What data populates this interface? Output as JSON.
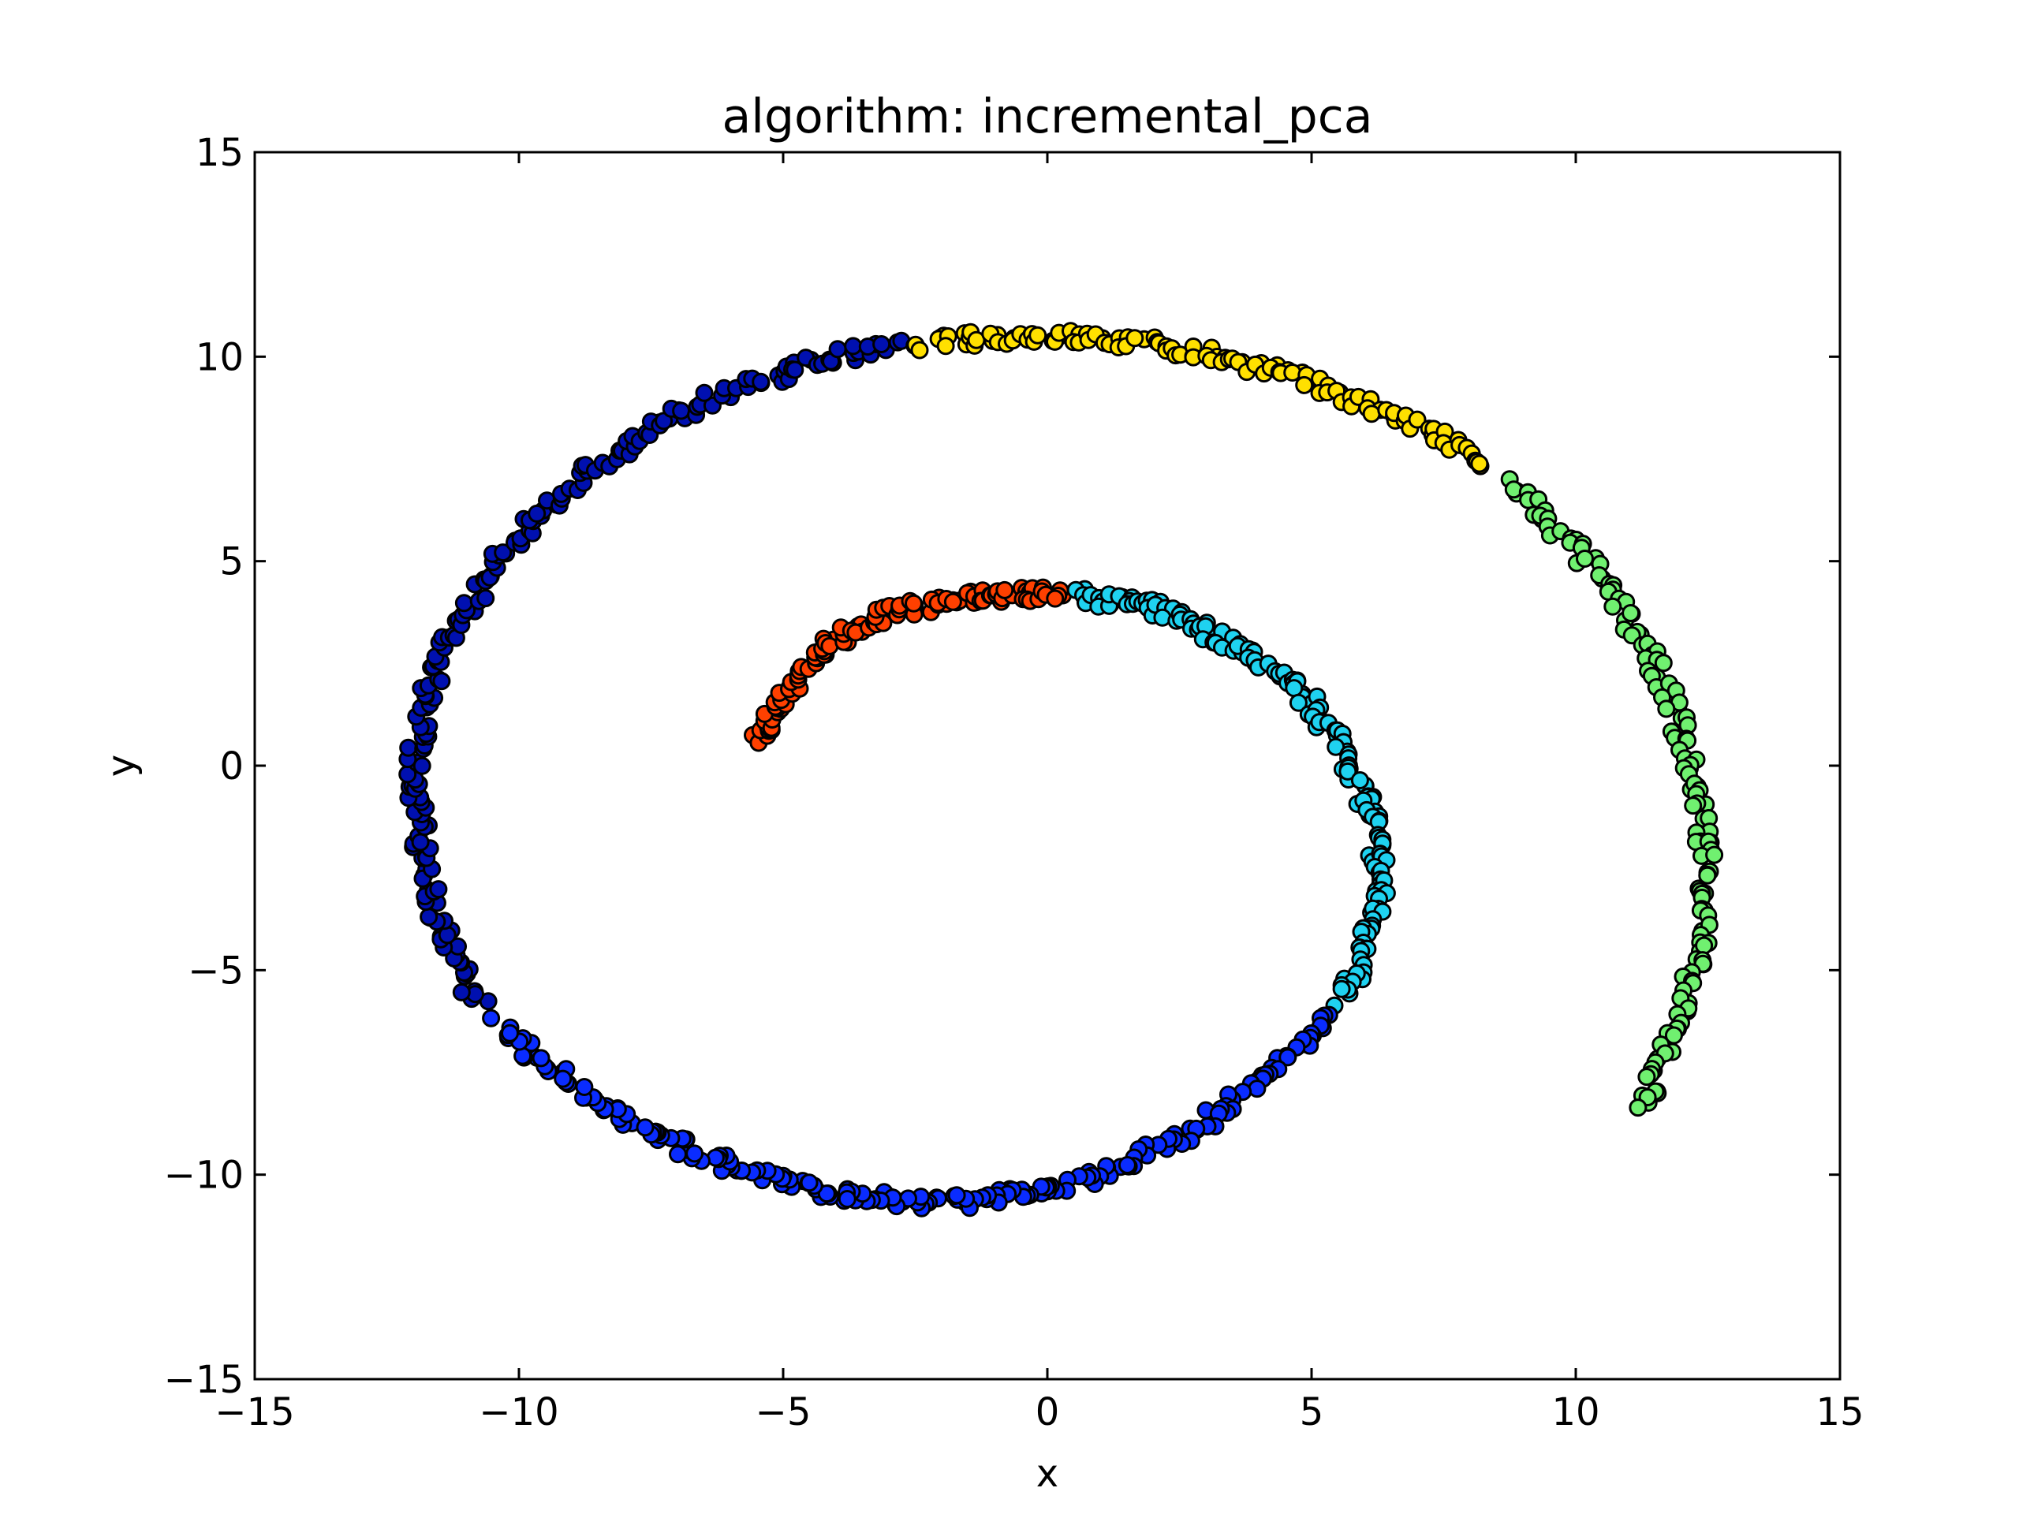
{
  "chart_data": {
    "type": "scatter",
    "title": "algorithm: incremental_pca",
    "xlabel": "x",
    "ylabel": "y",
    "xlim": [
      -15,
      15
    ],
    "ylim": [
      -15,
      15
    ],
    "xticks": [
      -15,
      -10,
      -5,
      0,
      5,
      10,
      15
    ],
    "yticks": [
      -15,
      -10,
      -5,
      0,
      5,
      10,
      15
    ],
    "xtick_labels": [
      "−15",
      "−10",
      "−5",
      "0",
      "5",
      "10",
      "15"
    ],
    "ytick_labels": [
      "−15",
      "−10",
      "−5",
      "0",
      "5",
      "10",
      "15"
    ],
    "grid": false,
    "legend": "none",
    "marker_edge_color": "#000000",
    "colormap": "jet",
    "series": [
      {
        "color": "#ff4000",
        "points": [
          [
            -5.4,
            0.6
          ],
          [
            -5.35,
            0.9
          ],
          [
            -5.25,
            1.2
          ],
          [
            -5.1,
            1.5
          ],
          [
            -4.95,
            1.8
          ],
          [
            -4.8,
            2.1
          ],
          [
            -4.6,
            2.4
          ],
          [
            -4.4,
            2.7
          ],
          [
            -4.15,
            2.95
          ],
          [
            -3.9,
            3.15
          ],
          [
            -3.6,
            3.35
          ],
          [
            -3.3,
            3.55
          ],
          [
            -3.0,
            3.7
          ],
          [
            -2.7,
            3.8
          ],
          [
            -2.4,
            3.9
          ],
          [
            -2.1,
            3.98
          ],
          [
            -1.8,
            4.05
          ],
          [
            -1.5,
            4.1
          ],
          [
            -1.2,
            4.15
          ],
          [
            -0.9,
            4.18
          ],
          [
            -0.6,
            4.2
          ],
          [
            -0.3,
            4.2
          ],
          [
            0.0,
            4.2
          ],
          [
            0.3,
            4.18
          ]
        ]
      },
      {
        "color": "#1fd2f0",
        "points": [
          [
            0.6,
            4.15
          ],
          [
            0.9,
            4.12
          ],
          [
            1.2,
            4.05
          ],
          [
            1.5,
            4.0
          ],
          [
            1.8,
            3.9
          ],
          [
            2.1,
            3.8
          ],
          [
            2.4,
            3.65
          ],
          [
            2.7,
            3.5
          ],
          [
            3.0,
            3.3
          ],
          [
            3.3,
            3.1
          ],
          [
            3.6,
            2.9
          ],
          [
            3.9,
            2.65
          ],
          [
            4.2,
            2.4
          ],
          [
            4.5,
            2.1
          ],
          [
            4.75,
            1.8
          ],
          [
            5.0,
            1.5
          ],
          [
            5.25,
            1.1
          ],
          [
            5.45,
            0.7
          ],
          [
            5.65,
            0.3
          ],
          [
            5.8,
            -0.1
          ],
          [
            5.95,
            -0.5
          ],
          [
            6.05,
            -0.9
          ],
          [
            6.15,
            -1.3
          ],
          [
            6.2,
            -1.7
          ],
          [
            6.25,
            -2.1
          ],
          [
            6.3,
            -2.5
          ],
          [
            6.3,
            -2.9
          ],
          [
            6.25,
            -3.3
          ],
          [
            6.2,
            -3.7
          ],
          [
            6.1,
            -4.1
          ],
          [
            6.0,
            -4.5
          ],
          [
            5.85,
            -4.9
          ],
          [
            5.7,
            -5.3
          ],
          [
            5.5,
            -5.7
          ]
        ]
      },
      {
        "color": "#0a2cff",
        "points": [
          [
            5.25,
            -6.1
          ],
          [
            5.0,
            -6.5
          ],
          [
            4.75,
            -6.85
          ],
          [
            4.45,
            -7.25
          ],
          [
            4.15,
            -7.6
          ],
          [
            3.8,
            -7.95
          ],
          [
            3.45,
            -8.3
          ],
          [
            3.1,
            -8.6
          ],
          [
            2.7,
            -8.95
          ],
          [
            2.3,
            -9.2
          ],
          [
            1.9,
            -9.45
          ],
          [
            1.5,
            -9.7
          ],
          [
            1.1,
            -9.9
          ],
          [
            0.7,
            -10.1
          ],
          [
            0.3,
            -10.25
          ],
          [
            -0.1,
            -10.4
          ],
          [
            -0.5,
            -10.5
          ],
          [
            -0.9,
            -10.55
          ],
          [
            -1.3,
            -10.6
          ],
          [
            -1.7,
            -10.65
          ],
          [
            -2.1,
            -10.65
          ],
          [
            -2.5,
            -10.65
          ],
          [
            -2.9,
            -10.6
          ],
          [
            -3.3,
            -10.55
          ],
          [
            -3.7,
            -10.5
          ],
          [
            -4.1,
            -10.4
          ],
          [
            -4.5,
            -10.3
          ],
          [
            -4.9,
            -10.2
          ],
          [
            -5.3,
            -10.05
          ],
          [
            -5.7,
            -9.9
          ],
          [
            -6.1,
            -9.7
          ],
          [
            -6.5,
            -9.5
          ],
          [
            -6.9,
            -9.3
          ],
          [
            -7.3,
            -9.05
          ],
          [
            -7.7,
            -8.8
          ],
          [
            -8.1,
            -8.5
          ],
          [
            -8.5,
            -8.2
          ],
          [
            -8.9,
            -7.9
          ],
          [
            -9.3,
            -7.5
          ],
          [
            -9.7,
            -7.1
          ],
          [
            -10.05,
            -6.7
          ],
          [
            -10.4,
            -6.3
          ]
        ]
      },
      {
        "color": "#0010b0",
        "points": [
          [
            -10.7,
            -5.8
          ],
          [
            -11.0,
            -5.3
          ],
          [
            -11.2,
            -4.8
          ],
          [
            -11.35,
            -4.3
          ],
          [
            -11.5,
            -3.8
          ],
          [
            -11.6,
            -3.3
          ],
          [
            -11.7,
            -2.8
          ],
          [
            -11.8,
            -2.3
          ],
          [
            -11.85,
            -1.8
          ],
          [
            -11.9,
            -1.3
          ],
          [
            -11.95,
            -0.8
          ],
          [
            -11.95,
            -0.3
          ],
          [
            -11.95,
            0.2
          ],
          [
            -11.9,
            0.7
          ],
          [
            -11.85,
            1.2
          ],
          [
            -11.75,
            1.7
          ],
          [
            -11.6,
            2.2
          ],
          [
            -11.45,
            2.7
          ],
          [
            -11.25,
            3.2
          ],
          [
            -11.05,
            3.7
          ],
          [
            -10.8,
            4.2
          ],
          [
            -10.55,
            4.7
          ],
          [
            -10.3,
            5.15
          ],
          [
            -10.0,
            5.6
          ],
          [
            -9.7,
            6.05
          ],
          [
            -9.35,
            6.45
          ],
          [
            -9.0,
            6.85
          ],
          [
            -8.6,
            7.25
          ],
          [
            -8.2,
            7.6
          ],
          [
            -7.8,
            7.95
          ],
          [
            -7.4,
            8.3
          ],
          [
            -6.95,
            8.6
          ],
          [
            -6.5,
            8.85
          ],
          [
            -6.05,
            9.1
          ],
          [
            -5.6,
            9.35
          ],
          [
            -5.15,
            9.55
          ],
          [
            -4.7,
            9.75
          ],
          [
            -4.25,
            9.9
          ],
          [
            -3.8,
            10.05
          ],
          [
            -3.35,
            10.15
          ],
          [
            -2.9,
            10.25
          ]
        ]
      },
      {
        "color": "#ffe000",
        "points": [
          [
            -2.45,
            10.3
          ],
          [
            -2.0,
            10.38
          ],
          [
            -1.55,
            10.42
          ],
          [
            -1.1,
            10.45
          ],
          [
            -0.65,
            10.48
          ],
          [
            -0.2,
            10.5
          ],
          [
            0.25,
            10.5
          ],
          [
            0.7,
            10.45
          ],
          [
            1.15,
            10.42
          ],
          [
            1.6,
            10.35
          ],
          [
            2.05,
            10.28
          ],
          [
            2.5,
            10.18
          ],
          [
            2.95,
            10.08
          ],
          [
            3.4,
            9.95
          ],
          [
            3.85,
            9.8
          ],
          [
            4.3,
            9.65
          ],
          [
            4.75,
            9.45
          ],
          [
            5.2,
            9.25
          ],
          [
            5.65,
            9.05
          ],
          [
            6.1,
            8.8
          ],
          [
            6.55,
            8.55
          ],
          [
            7.0,
            8.3
          ],
          [
            7.45,
            8.0
          ],
          [
            7.9,
            7.65
          ],
          [
            8.3,
            7.3
          ]
        ]
      },
      {
        "color": "#70f070",
        "points": [
          [
            8.7,
            6.9
          ],
          [
            9.1,
            6.45
          ],
          [
            9.45,
            6.0
          ],
          [
            9.8,
            5.55
          ],
          [
            10.15,
            5.1
          ],
          [
            10.45,
            4.6
          ],
          [
            10.75,
            4.1
          ],
          [
            11.0,
            3.6
          ],
          [
            11.25,
            3.05
          ],
          [
            11.45,
            2.5
          ],
          [
            11.65,
            1.95
          ],
          [
            11.85,
            1.4
          ],
          [
            12.0,
            0.85
          ],
          [
            12.1,
            0.3
          ],
          [
            12.2,
            -0.25
          ],
          [
            12.3,
            -0.8
          ],
          [
            12.4,
            -1.35
          ],
          [
            12.45,
            -1.9
          ],
          [
            12.5,
            -2.45
          ],
          [
            12.5,
            -3.0
          ],
          [
            12.45,
            -3.55
          ],
          [
            12.4,
            -4.1
          ],
          [
            12.3,
            -4.65
          ],
          [
            12.2,
            -5.2
          ],
          [
            12.05,
            -5.75
          ],
          [
            11.9,
            -6.3
          ],
          [
            11.75,
            -6.85
          ],
          [
            11.55,
            -7.4
          ],
          [
            11.4,
            -7.9
          ],
          [
            11.35,
            -8.25
          ]
        ]
      }
    ]
  }
}
